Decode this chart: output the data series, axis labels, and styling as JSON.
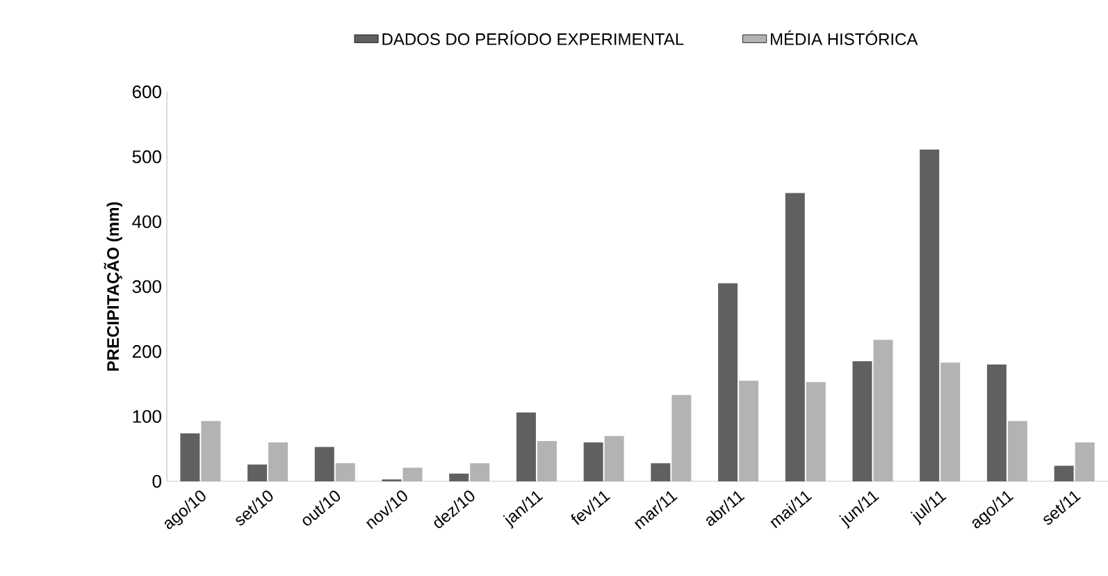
{
  "chart_data": {
    "type": "bar",
    "ylabel": "PRECIPITAÇÃO (mm)",
    "categories": [
      "ago/10",
      "set/10",
      "out/10",
      "nov/10",
      "dez/10",
      "jan/11",
      "fev/11",
      "mar/11",
      "abr/11",
      "mai/11",
      "jun/11",
      "jul/11",
      "ago/11",
      "set/11"
    ],
    "series": [
      {
        "name": "DADOS DO PERÍODO EXPERIMENTAL",
        "color": "#606060",
        "values": [
          74,
          26,
          53,
          3,
          12,
          106,
          60,
          28,
          305,
          444,
          185,
          511,
          180,
          24
        ]
      },
      {
        "name": "MÉDIA HISTÓRICA",
        "color": "#b3b3b3",
        "values": [
          93,
          60,
          28,
          21,
          28,
          62,
          70,
          133,
          155,
          153,
          218,
          183,
          93,
          60
        ]
      }
    ],
    "ylim": [
      0,
      600
    ],
    "yticks": [
      0,
      100,
      200,
      300,
      400,
      500,
      600
    ],
    "grid": false,
    "legend": "top"
  }
}
